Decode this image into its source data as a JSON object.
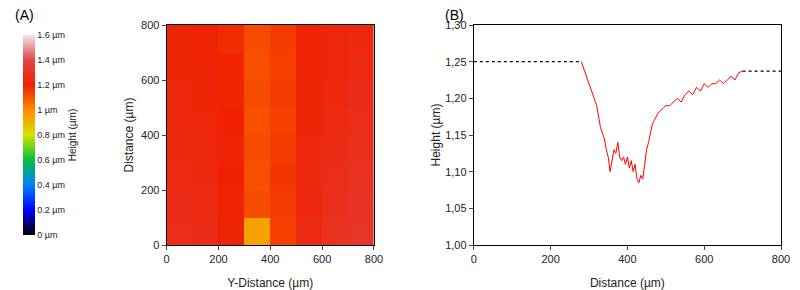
{
  "chart_data": [
    {
      "type": "heatmap",
      "title": "(A)",
      "x_label": "Y-Distance (µm)",
      "y_label": "Distance (µm)",
      "x": [
        50,
        150,
        250,
        350,
        450,
        550,
        650,
        750
      ],
      "y": [
        50,
        150,
        250,
        350,
        450,
        550,
        650,
        750
      ],
      "z": [
        [
          1.27,
          1.26,
          1.22,
          0.95,
          1.14,
          1.25,
          1.29,
          1.31
        ],
        [
          1.26,
          1.25,
          1.21,
          1.12,
          1.15,
          1.24,
          1.28,
          1.3
        ],
        [
          1.25,
          1.24,
          1.2,
          1.11,
          1.16,
          1.24,
          1.27,
          1.29
        ],
        [
          1.24,
          1.24,
          1.21,
          1.12,
          1.15,
          1.23,
          1.26,
          1.28
        ],
        [
          1.23,
          1.23,
          1.2,
          1.11,
          1.14,
          1.22,
          1.25,
          1.27
        ],
        [
          1.23,
          1.22,
          1.19,
          1.12,
          1.15,
          1.22,
          1.24,
          1.26
        ],
        [
          1.22,
          1.22,
          1.19,
          1.11,
          1.14,
          1.21,
          1.23,
          1.25
        ],
        [
          1.22,
          1.21,
          1.18,
          1.12,
          1.15,
          1.21,
          1.23,
          1.24
        ]
      ],
      "xlim": [
        0,
        800
      ],
      "xticks": [
        0,
        200,
        400,
        600,
        800
      ],
      "ylim": [
        0,
        800
      ],
      "yticks": [
        0,
        200,
        400,
        600,
        800
      ],
      "colorbar": {
        "title": "Height (µm)",
        "range": [
          0,
          1.6
        ],
        "ticks": [
          {
            "value": 0,
            "label": "0 µm"
          },
          {
            "value": 0.2,
            "label": "0.2 µm"
          },
          {
            "value": 0.4,
            "label": "0.4 µm"
          },
          {
            "value": 0.6,
            "label": "0.6 µm"
          },
          {
            "value": 0.8,
            "label": "0.8 µm"
          },
          {
            "value": 1,
            "label": "1 µm"
          },
          {
            "value": 1.2,
            "label": "1.2 µm"
          },
          {
            "value": 1.4,
            "label": "1.4 µm"
          },
          {
            "value": 1.6,
            "label": "1.6 µm"
          }
        ]
      }
    },
    {
      "type": "line",
      "title": "(B)",
      "x_label": "Distance (µm)",
      "y_label": "Height (µm)",
      "xlim": [
        0,
        800
      ],
      "xticks": [
        0,
        200,
        400,
        600,
        800
      ],
      "ylim": [
        1.0,
        1.3
      ],
      "yticks": [
        {
          "value": 1.0,
          "label": "1,00"
        },
        {
          "value": 1.05,
          "label": "1,05"
        },
        {
          "value": 1.1,
          "label": "1,10"
        },
        {
          "value": 1.15,
          "label": "1,15"
        },
        {
          "value": 1.2,
          "label": "1,20"
        },
        {
          "value": 1.25,
          "label": "1,25"
        },
        {
          "value": 1.3,
          "label": "1,30"
        }
      ],
      "grid": false,
      "series": [
        {
          "color": "#000000",
          "line_style": "dot",
          "x": [
            0,
            280
          ],
          "values": [
            1.25,
            1.25
          ]
        },
        {
          "color": "#ff0000",
          "line_style": "solid",
          "x": [
            280,
            290,
            300,
            310,
            320,
            330,
            340,
            345,
            350,
            355,
            360,
            365,
            370,
            375,
            380,
            385,
            390,
            395,
            400,
            405,
            410,
            415,
            420,
            425,
            430,
            435,
            440,
            445,
            450,
            455,
            460,
            465,
            470,
            475,
            480,
            490,
            500,
            510,
            520,
            530,
            540,
            550,
            560,
            570,
            580,
            590,
            600,
            610,
            620,
            630,
            640,
            650,
            660,
            670,
            680,
            690,
            700
          ],
          "values": [
            1.25,
            1.235,
            1.22,
            1.205,
            1.19,
            1.16,
            1.145,
            1.13,
            1.12,
            1.1,
            1.115,
            1.13,
            1.125,
            1.14,
            1.12,
            1.115,
            1.12,
            1.11,
            1.12,
            1.105,
            1.115,
            1.1,
            1.11,
            1.09,
            1.085,
            1.095,
            1.09,
            1.11,
            1.13,
            1.14,
            1.155,
            1.165,
            1.17,
            1.175,
            1.18,
            1.185,
            1.19,
            1.19,
            1.195,
            1.2,
            1.195,
            1.205,
            1.21,
            1.205,
            1.215,
            1.21,
            1.22,
            1.215,
            1.22,
            1.22,
            1.225,
            1.22,
            1.225,
            1.23,
            1.225,
            1.235,
            1.237
          ]
        },
        {
          "color": "#000000",
          "line_style": "dot",
          "x": [
            700,
            800
          ],
          "values": [
            1.237,
            1.237
          ]
        }
      ]
    }
  ]
}
